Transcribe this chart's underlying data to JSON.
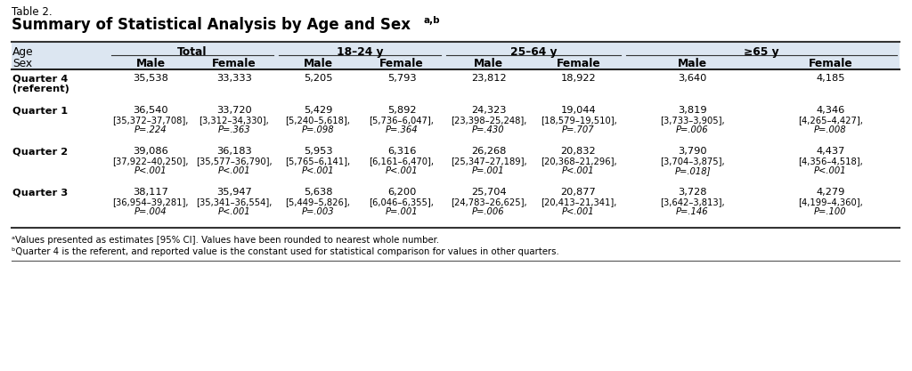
{
  "table_label": "Table 2.",
  "title": "Summary of Statistical Analysis by Age and Sex",
  "title_superscript": "a,b",
  "header_bg": "#dce6f1",
  "footnote_a": "ᵃValues presented as estimates [95% CI]. Values have been rounded to nearest whole number.",
  "footnote_b": "ᵇQuarter 4 is the referent, and reported value is the constant used for statistical comparison for values in other quarters.",
  "age_groups": [
    "Total",
    "18–24 y",
    "25–64 y",
    "≥65 y"
  ],
  "col_boundaries": [
    13,
    122,
    310,
    498,
    700,
    1010
  ],
  "rows": [
    {
      "label": "Quarter 4\n(referent)",
      "values": [
        "35,538",
        "33,333",
        "5,205",
        "5,793",
        "23,812",
        "18,922",
        "3,640",
        "4,185"
      ],
      "ci": [
        "",
        "",
        "",
        "",
        "",
        "",
        "",
        ""
      ],
      "pval": [
        "",
        "",
        "",
        "",
        "",
        "",
        "",
        ""
      ]
    },
    {
      "label": "Quarter 1",
      "values": [
        "36,540",
        "33,720",
        "5,429",
        "5,892",
        "24,323",
        "19,044",
        "3,819",
        "4,346"
      ],
      "ci": [
        "[35,372–37,708],",
        "[3,312–34,330],",
        "[5,240–5,618],",
        "[5,736–6,047],",
        "[23,398–25,248],",
        "[18,579–19,510],",
        "[3,733–3,905],",
        "[4,265–4,427],"
      ],
      "pval": [
        "P=.224",
        "P=.363",
        "P=.098",
        "P=.364",
        "P=.430",
        "P=.707",
        "P=.006",
        "P=.008"
      ]
    },
    {
      "label": "Quarter 2",
      "values": [
        "39,086",
        "36,183",
        "5,953",
        "6,316",
        "26,268",
        "20,832",
        "3,790",
        "4,437"
      ],
      "ci": [
        "[37,922–40,250],",
        "[35,577–36,790],",
        "[5,765–6,141],",
        "[6,161–6,470],",
        "[25,347–27,189],",
        "[20,368–21,296],",
        "[3,704–3,875],",
        "[4,356–4,518],"
      ],
      "pval": [
        "P<.001",
        "P<.001",
        "P<.001",
        "P<.001",
        "P=.001",
        "P<.001",
        "P=.018]",
        "P<.001"
      ]
    },
    {
      "label": "Quarter 3",
      "values": [
        "38,117",
        "35,947",
        "5,638",
        "6,200",
        "25,704",
        "20,877",
        "3,728",
        "4,279"
      ],
      "ci": [
        "[36,954–39,281],",
        "[35,341–36,554],",
        "[5,449–5,826],",
        "[6,046–6,355],",
        "[24,783–26,625],",
        "[20,413–21,341],",
        "[3,642–3,813],",
        "[4,199–4,360],"
      ],
      "pval": [
        "P=.004",
        "P<.001",
        "P=.003",
        "P=.001",
        "P=.006",
        "P<.001",
        "P=.146",
        "P=.100"
      ]
    }
  ]
}
